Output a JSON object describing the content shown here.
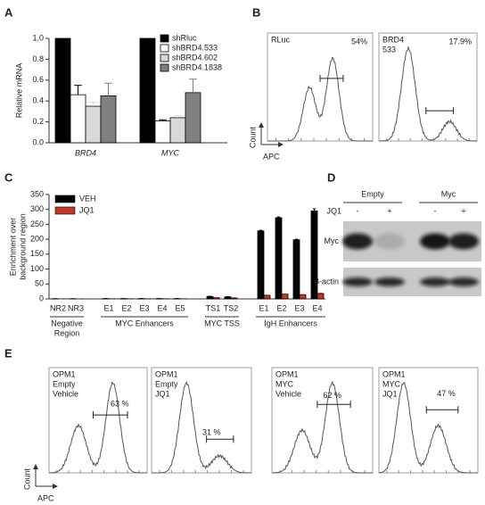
{
  "chart_data": [
    {
      "type": "bar",
      "label": "A",
      "y_label": "Relative mRNA",
      "categories": [
        "BRD4",
        "MYC"
      ],
      "series": [
        {
          "name": "shRluc",
          "color": "#000000",
          "values": [
            1.0,
            1.0
          ]
        },
        {
          "name": "shBRD4.533",
          "color": "#ffffff",
          "values": [
            0.46,
            0.21
          ],
          "errors": [
            0.09,
            0.01
          ]
        },
        {
          "name": "shBRD4.602",
          "color": "#d9d9d9",
          "values": [
            0.35,
            0.24
          ],
          "errors": [
            0.04,
            0.02
          ]
        },
        {
          "name": "shBRD4.1838",
          "color": "#808080",
          "values": [
            0.45,
            0.48
          ],
          "errors": [
            0.12,
            0.13
          ]
        }
      ],
      "ylim": [
        0,
        1.0
      ],
      "yticks": [
        {
          "value": 0,
          "label": "0.0"
        },
        {
          "value": 0.2,
          "label": "0.2"
        },
        {
          "value": 0.4,
          "label": "0.4"
        },
        {
          "value": 0.6,
          "label": "0.6"
        },
        {
          "value": 0.8,
          "label": "0.8"
        },
        {
          "value": 1.0,
          "label": "1.0"
        }
      ]
    },
    {
      "type": "bar",
      "label": "C",
      "y_label": [
        "Enrichment over",
        "background region"
      ],
      "groups": [
        {
          "name": [
            "Negative",
            "Region"
          ],
          "categories": [
            "NR2",
            "NR3"
          ]
        },
        {
          "name": [
            "MYC Enhancers"
          ],
          "categories": [
            "E1",
            "E2",
            "E3",
            "E4",
            "E5"
          ]
        },
        {
          "name": [
            "MYC TSS"
          ],
          "categories": [
            "TS1",
            "TS2"
          ]
        },
        {
          "name": [
            "IgH Enhancers"
          ],
          "categories": [
            "E1",
            "E2",
            "E3",
            "E4"
          ]
        }
      ],
      "series": [
        {
          "name": "VEH",
          "color": "#000000",
          "values": [
            0.5,
            0.5,
            1,
            1,
            1,
            1,
            1,
            8,
            7,
            228,
            272,
            198,
            295
          ],
          "errors": [
            0.2,
            0.2,
            0.3,
            0.3,
            0.3,
            0.3,
            0.3,
            1,
            1,
            2,
            3,
            2,
            7
          ]
        },
        {
          "name": "JQ1",
          "color": "#c0392b",
          "values": [
            0.3,
            0.3,
            0.5,
            0.5,
            0.5,
            0.5,
            0.5,
            4,
            3,
            12,
            16,
            14,
            18
          ],
          "errors": [
            0.1,
            0.1,
            0.2,
            0.2,
            0.2,
            0.2,
            0.2,
            1,
            1,
            1,
            1,
            1,
            2
          ]
        }
      ],
      "ylim": [
        0,
        350
      ],
      "yticks": [
        0,
        50,
        100,
        150,
        200,
        250,
        300,
        350
      ]
    }
  ],
  "flow_panels": [
    {
      "label": "B",
      "y_label": "Count",
      "x_label": "APC",
      "plots": [
        {
          "lines": [
            "RLuc"
          ],
          "percent": "54%"
        },
        {
          "lines": [
            "BRD4",
            "533"
          ],
          "percent": "17.9%"
        }
      ]
    },
    {
      "label": "E",
      "y_label": "Count",
      "x_label": "APC",
      "plots": [
        {
          "lines": [
            "OPM1",
            "Empty",
            "Vehicle"
          ],
          "percent": "63 %"
        },
        {
          "lines": [
            "OPM1",
            "Empty",
            "JQ1"
          ],
          "percent": "31 %"
        },
        {
          "lines": [
            "OPM1",
            "MYC",
            "Vehicle"
          ],
          "percent": "62 %"
        },
        {
          "lines": [
            "OPM1",
            "MYC",
            "JQ1"
          ],
          "percent": "47 %"
        }
      ]
    }
  ],
  "blot": {
    "label": "D",
    "groups": [
      "Empty",
      "Myc"
    ],
    "treatment": "JQ1",
    "lanes": [
      "-",
      "+",
      "-",
      "+"
    ],
    "rows": [
      "Myc",
      "β-actin"
    ]
  }
}
